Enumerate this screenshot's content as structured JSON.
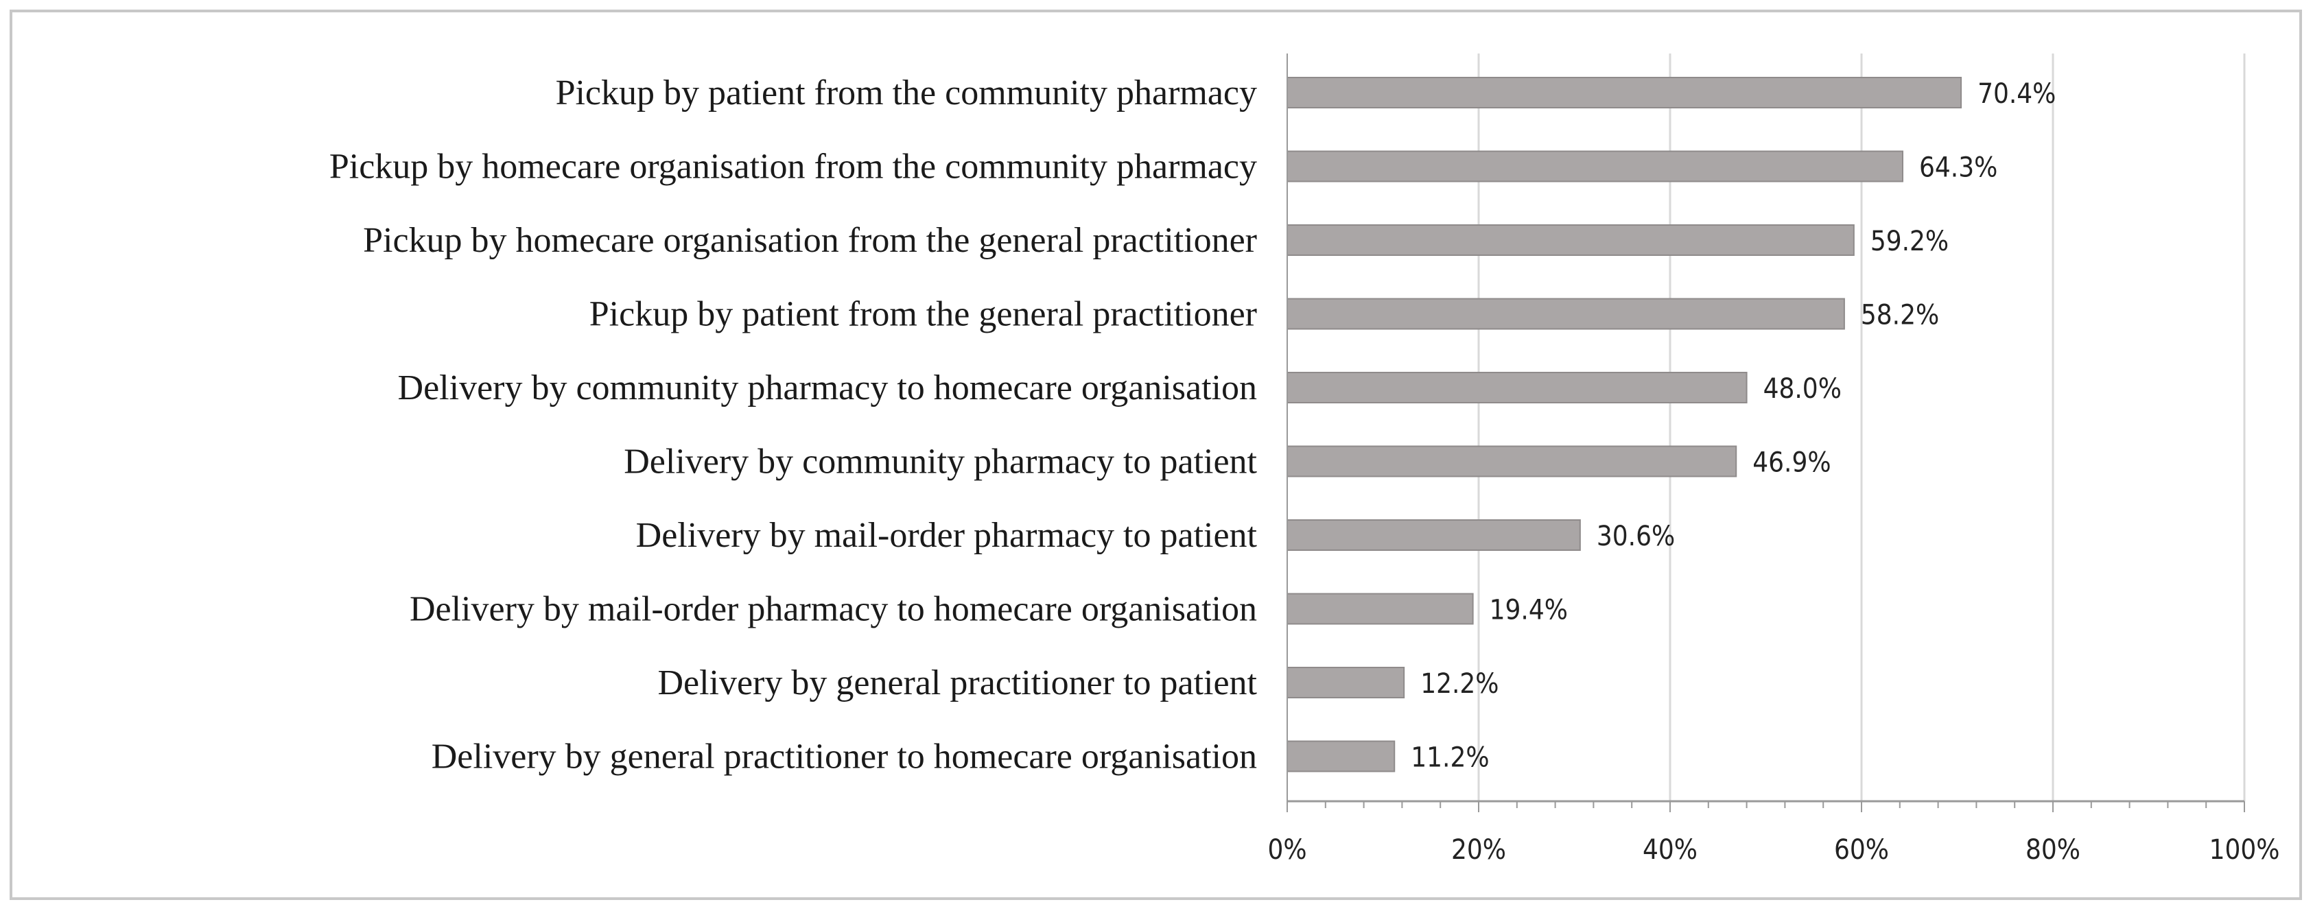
{
  "chart_data": {
    "type": "bar",
    "orientation": "horizontal",
    "categories": [
      "Pickup by patient from the community pharmacy",
      "Pickup by homecare organisation from the community pharmacy",
      "Pickup by homecare organisation from the general practitioner",
      "Pickup by patient from the general practitioner",
      "Delivery by community pharmacy to homecare organisation",
      "Delivery by community pharmacy to patient",
      "Delivery by mail-order pharmacy to patient",
      "Delivery by mail-order pharmacy to homecare organisation",
      "Delivery by general practitioner to patient",
      "Delivery by general practitioner to homecare organisation"
    ],
    "values": [
      70.4,
      64.3,
      59.2,
      58.2,
      48.0,
      46.9,
      30.6,
      19.4,
      12.2,
      11.2
    ],
    "value_labels": [
      "70.4%",
      "64.3%",
      "59.2%",
      "58.2%",
      "48.0%",
      "46.9%",
      "30.6%",
      "19.4%",
      "12.2%",
      "11.2%"
    ],
    "xlim": [
      0,
      100
    ],
    "x_ticks": [
      0,
      20,
      40,
      60,
      80,
      100
    ],
    "x_tick_labels": [
      "0%",
      "20%",
      "40%",
      "60%",
      "80%",
      "100%"
    ],
    "grid": true,
    "legend": "none",
    "title": "",
    "xlabel": "",
    "ylabel": "",
    "colors": {
      "bar_fill": "#aaa6a6",
      "bar_stroke": "#8f8b8b",
      "grid": "#d9d9d9",
      "axis": "#9a9a9a",
      "frame": "#c8c8c8"
    }
  }
}
